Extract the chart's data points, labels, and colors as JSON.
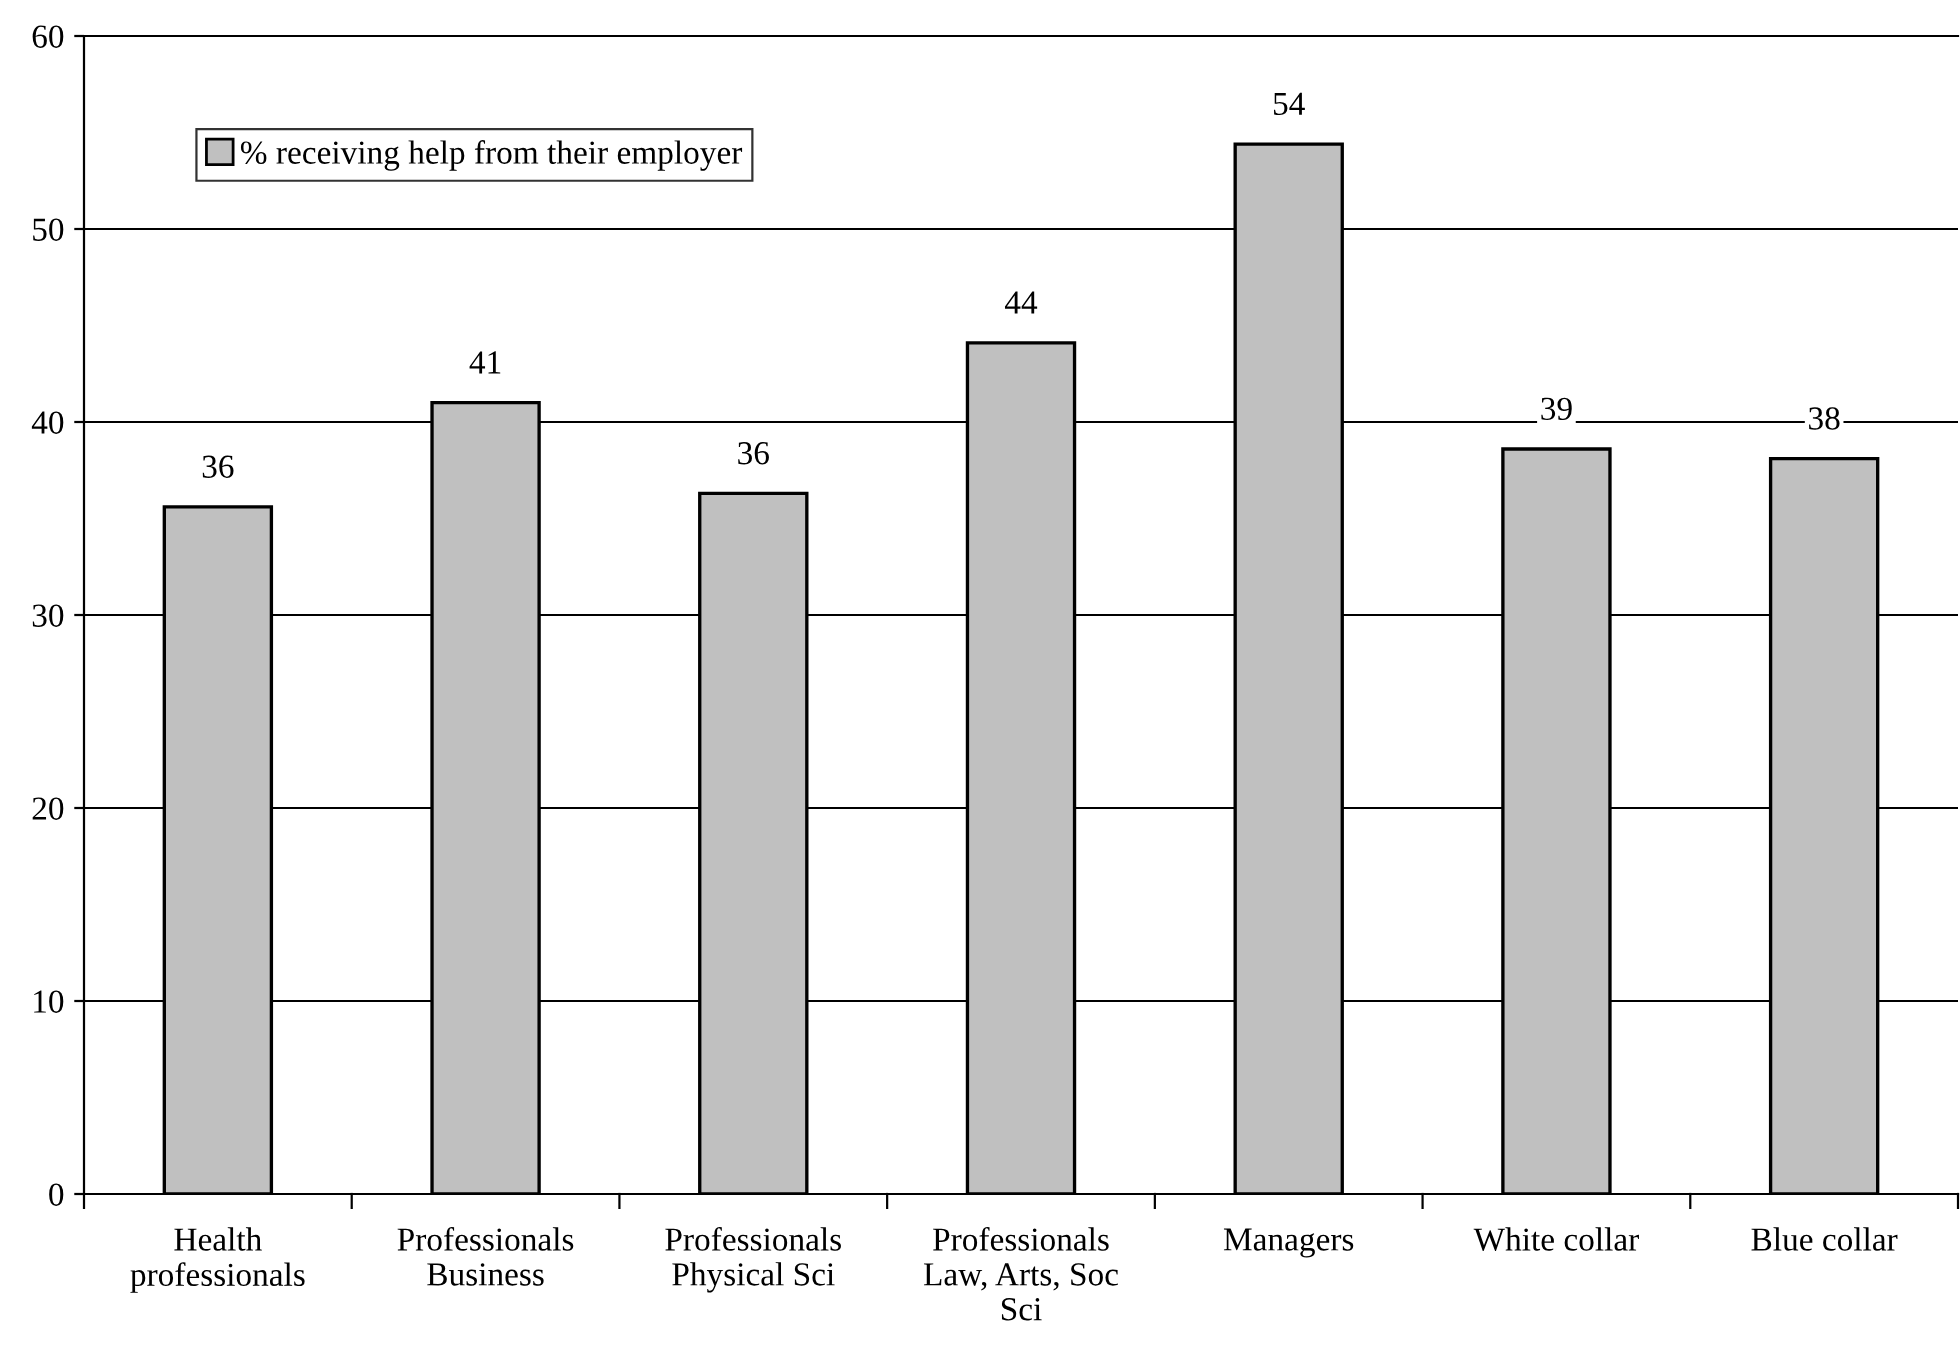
{
  "chart_data": {
    "type": "bar",
    "categories": [
      "Health\nprofessionals",
      "Professionals\nBusiness",
      "Professionals\nPhysical Sci",
      "Professionals\nLaw, Arts, Soc\nSci",
      "Managers",
      "White collar",
      "Blue collar"
    ],
    "series": [
      {
        "name": "% receiving help from their employer",
        "color": "#c0c0c0",
        "values": [
          35.6,
          41.0,
          36.3,
          44.1,
          54.4,
          38.6,
          38.1
        ],
        "value_labels": [
          "36",
          "41",
          "36",
          "44",
          "54",
          "39",
          "38"
        ]
      }
    ],
    "ylim": [
      0,
      60
    ],
    "yticks": [
      0,
      10,
      20,
      30,
      40,
      50,
      60
    ],
    "grid": "y",
    "legend": "top left"
  }
}
